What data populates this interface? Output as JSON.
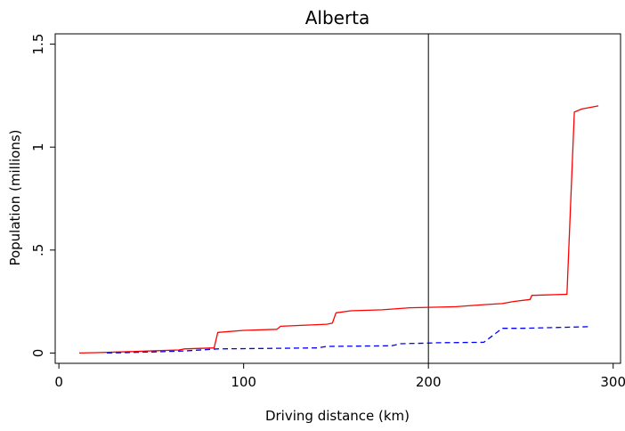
{
  "chart_data": {
    "type": "line",
    "title": "Alberta",
    "xlabel": "Driving distance (km)",
    "ylabel": "Population (millions)",
    "xlim": [
      -2,
      304
    ],
    "ylim": [
      -0.05,
      1.55
    ],
    "xticks": [
      0,
      100,
      200,
      300
    ],
    "xtick_labels": [
      "0",
      "100",
      "200",
      "300"
    ],
    "yticks": [
      0,
      0.5,
      1,
      1.5
    ],
    "ytick_labels": [
      "0",
      ".5",
      "1",
      "1.5"
    ],
    "grid": false,
    "legend": "none",
    "reference_line": {
      "x": 200,
      "color": "#000000"
    },
    "series": [
      {
        "color": "#ff0000",
        "dash": "solid",
        "points": [
          [
            11,
            0.0
          ],
          [
            20,
            0.002
          ],
          [
            40,
            0.007
          ],
          [
            55,
            0.012
          ],
          [
            65,
            0.015
          ],
          [
            68,
            0.02
          ],
          [
            84,
            0.025
          ],
          [
            86,
            0.1
          ],
          [
            100,
            0.11
          ],
          [
            118,
            0.115
          ],
          [
            120,
            0.13
          ],
          [
            145,
            0.14
          ],
          [
            148,
            0.145
          ],
          [
            150,
            0.195
          ],
          [
            158,
            0.205
          ],
          [
            175,
            0.21
          ],
          [
            190,
            0.22
          ],
          [
            215,
            0.225
          ],
          [
            230,
            0.235
          ],
          [
            240,
            0.24
          ],
          [
            246,
            0.25
          ],
          [
            255,
            0.26
          ],
          [
            256,
            0.28
          ],
          [
            275,
            0.285
          ],
          [
            279,
            1.17
          ],
          [
            283,
            1.185
          ],
          [
            292,
            1.2
          ]
        ]
      },
      {
        "color": "#0000ff",
        "dash": "dashed",
        "points": [
          [
            26,
            0.0
          ],
          [
            50,
            0.005
          ],
          [
            68,
            0.01
          ],
          [
            86,
            0.02
          ],
          [
            140,
            0.025
          ],
          [
            145,
            0.032
          ],
          [
            180,
            0.035
          ],
          [
            185,
            0.045
          ],
          [
            200,
            0.048
          ],
          [
            205,
            0.05
          ],
          [
            230,
            0.052
          ],
          [
            240,
            0.12
          ],
          [
            250,
            0.12
          ],
          [
            275,
            0.125
          ],
          [
            288,
            0.128
          ]
        ]
      }
    ]
  }
}
